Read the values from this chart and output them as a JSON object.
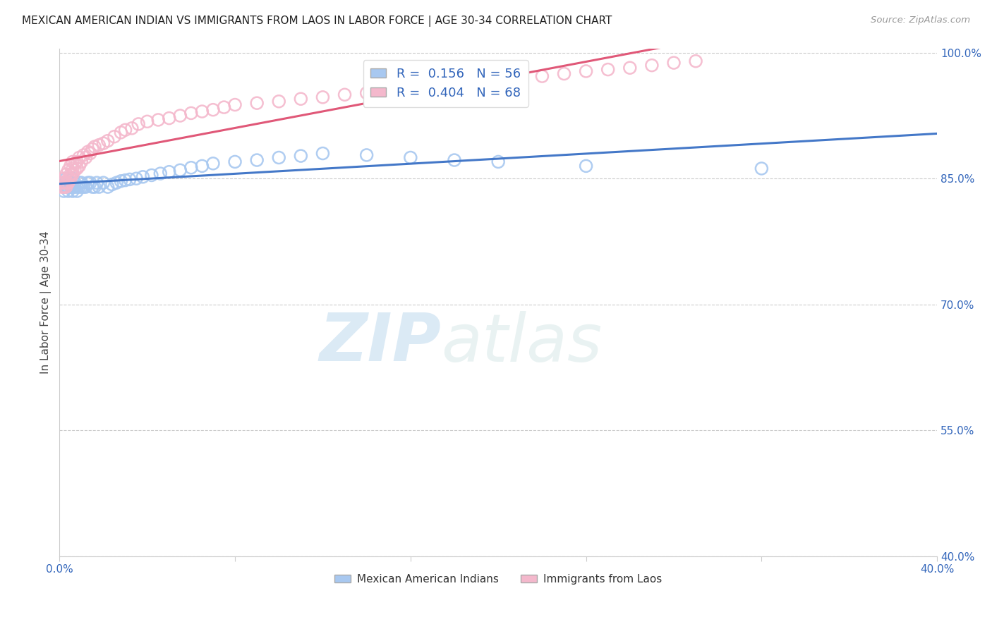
{
  "title": "MEXICAN AMERICAN INDIAN VS IMMIGRANTS FROM LAOS IN LABOR FORCE | AGE 30-34 CORRELATION CHART",
  "source": "Source: ZipAtlas.com",
  "ylabel": "In Labor Force | Age 30-34",
  "xlim": [
    0.0,
    0.4
  ],
  "ylim": [
    0.4,
    1.005
  ],
  "xticks": [
    0.0,
    0.08,
    0.16,
    0.24,
    0.32,
    0.4
  ],
  "xtick_labels": [
    "0.0%",
    "",
    "",
    "",
    "",
    "40.0%"
  ],
  "ytick_labels": [
    "100.0%",
    "85.0%",
    "70.0%",
    "55.0%",
    "40.0%"
  ],
  "yticks": [
    1.0,
    0.85,
    0.7,
    0.55,
    0.4
  ],
  "blue_R": 0.156,
  "blue_N": 56,
  "pink_R": 0.404,
  "pink_N": 68,
  "blue_color": "#a8c8f0",
  "pink_color": "#f4b8cc",
  "blue_line_color": "#4478c8",
  "pink_line_color": "#e05878",
  "watermark_zip": "ZIP",
  "watermark_atlas": "atlas",
  "blue_scatter_x": [
    0.002,
    0.002,
    0.003,
    0.003,
    0.003,
    0.004,
    0.004,
    0.004,
    0.005,
    0.005,
    0.006,
    0.006,
    0.006,
    0.007,
    0.007,
    0.008,
    0.008,
    0.009,
    0.009,
    0.01,
    0.01,
    0.011,
    0.012,
    0.013,
    0.014,
    0.015,
    0.016,
    0.017,
    0.018,
    0.02,
    0.022,
    0.024,
    0.026,
    0.028,
    0.03,
    0.032,
    0.035,
    0.038,
    0.042,
    0.046,
    0.05,
    0.055,
    0.06,
    0.065,
    0.07,
    0.08,
    0.09,
    0.1,
    0.11,
    0.12,
    0.14,
    0.16,
    0.18,
    0.2,
    0.24,
    0.32
  ],
  "blue_scatter_y": [
    0.835,
    0.84,
    0.84,
    0.845,
    0.85,
    0.835,
    0.84,
    0.845,
    0.84,
    0.845,
    0.835,
    0.84,
    0.85,
    0.84,
    0.845,
    0.835,
    0.84,
    0.84,
    0.845,
    0.84,
    0.845,
    0.84,
    0.84,
    0.845,
    0.845,
    0.84,
    0.84,
    0.845,
    0.84,
    0.845,
    0.84,
    0.843,
    0.845,
    0.847,
    0.848,
    0.849,
    0.85,
    0.852,
    0.854,
    0.856,
    0.858,
    0.86,
    0.863,
    0.865,
    0.868,
    0.87,
    0.872,
    0.875,
    0.877,
    0.88,
    0.878,
    0.875,
    0.872,
    0.87,
    0.865,
    0.862
  ],
  "pink_scatter_x": [
    0.001,
    0.001,
    0.002,
    0.002,
    0.002,
    0.003,
    0.003,
    0.003,
    0.004,
    0.004,
    0.004,
    0.005,
    0.005,
    0.005,
    0.006,
    0.006,
    0.006,
    0.007,
    0.007,
    0.008,
    0.008,
    0.009,
    0.009,
    0.01,
    0.011,
    0.012,
    0.013,
    0.014,
    0.015,
    0.016,
    0.018,
    0.02,
    0.022,
    0.025,
    0.028,
    0.03,
    0.033,
    0.036,
    0.04,
    0.045,
    0.05,
    0.055,
    0.06,
    0.065,
    0.07,
    0.075,
    0.08,
    0.09,
    0.1,
    0.11,
    0.12,
    0.13,
    0.14,
    0.15,
    0.16,
    0.17,
    0.18,
    0.19,
    0.2,
    0.21,
    0.22,
    0.23,
    0.24,
    0.25,
    0.26,
    0.27,
    0.28,
    0.29
  ],
  "pink_scatter_y": [
    0.84,
    0.845,
    0.84,
    0.845,
    0.85,
    0.84,
    0.845,
    0.855,
    0.845,
    0.85,
    0.86,
    0.85,
    0.855,
    0.865,
    0.855,
    0.862,
    0.87,
    0.86,
    0.868,
    0.862,
    0.87,
    0.865,
    0.875,
    0.87,
    0.878,
    0.875,
    0.882,
    0.88,
    0.885,
    0.888,
    0.89,
    0.892,
    0.895,
    0.9,
    0.905,
    0.908,
    0.91,
    0.915,
    0.918,
    0.92,
    0.922,
    0.925,
    0.928,
    0.93,
    0.932,
    0.935,
    0.938,
    0.94,
    0.942,
    0.945,
    0.947,
    0.95,
    0.952,
    0.955,
    0.958,
    0.96,
    0.962,
    0.965,
    0.968,
    0.97,
    0.972,
    0.975,
    0.978,
    0.98,
    0.982,
    0.985,
    0.988,
    0.99
  ]
}
